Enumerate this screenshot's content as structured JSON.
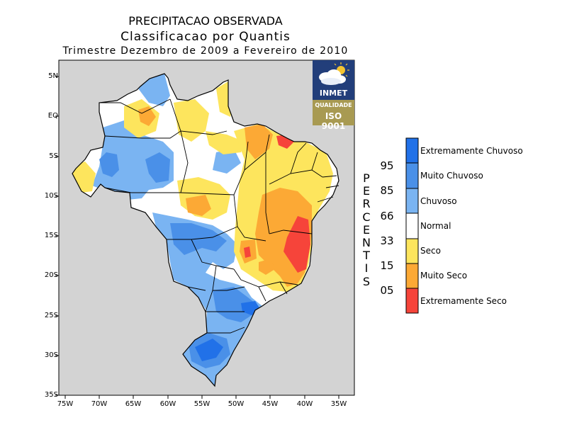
{
  "title": {
    "line1": "PRECIPITACAO OBSERVADA",
    "line2": "Classificacao por Quantis",
    "line3": "Trimestre Dezembro de 2009 a Fevereiro de 2010"
  },
  "axes": {
    "y_ticks": [
      "5N",
      "EQ",
      "5S",
      "10S",
      "15S",
      "20S",
      "25S",
      "30S",
      "35S"
    ],
    "x_ticks": [
      "75W",
      "70W",
      "65W",
      "60W",
      "55W",
      "50W",
      "45W",
      "40W",
      "35W"
    ]
  },
  "logo": {
    "name": "INMET",
    "quality": "QUALIDADE",
    "iso": "ISO 9001"
  },
  "legend": {
    "items": [
      {
        "label": "Extremamente Chuvoso",
        "color": "#2171e8"
      },
      {
        "label": "Muito Chuvoso",
        "color": "#4a90e8"
      },
      {
        "label": "Chuvoso",
        "color": "#7ab4f2"
      },
      {
        "label": "Normal",
        "color": "#ffffff"
      },
      {
        "label": "Seco",
        "color": "#fde55d"
      },
      {
        "label": "Muito Seco",
        "color": "#fca935"
      },
      {
        "label": "Extremamente Seco",
        "color": "#f6443a"
      }
    ],
    "percentis_word": "PERCENTIS",
    "percentile_values": [
      "95",
      "85",
      "66",
      "33",
      "15",
      "05"
    ]
  },
  "colors": {
    "ocean": "#d3d3d3",
    "land": "#ffffff",
    "extremamente_chuvoso": "#2171e8",
    "muito_chuvoso": "#4a90e8",
    "chuvoso": "#7ab4f2",
    "seco": "#fde55d",
    "muito_seco": "#fca935",
    "extremamente_seco": "#f6443a"
  }
}
